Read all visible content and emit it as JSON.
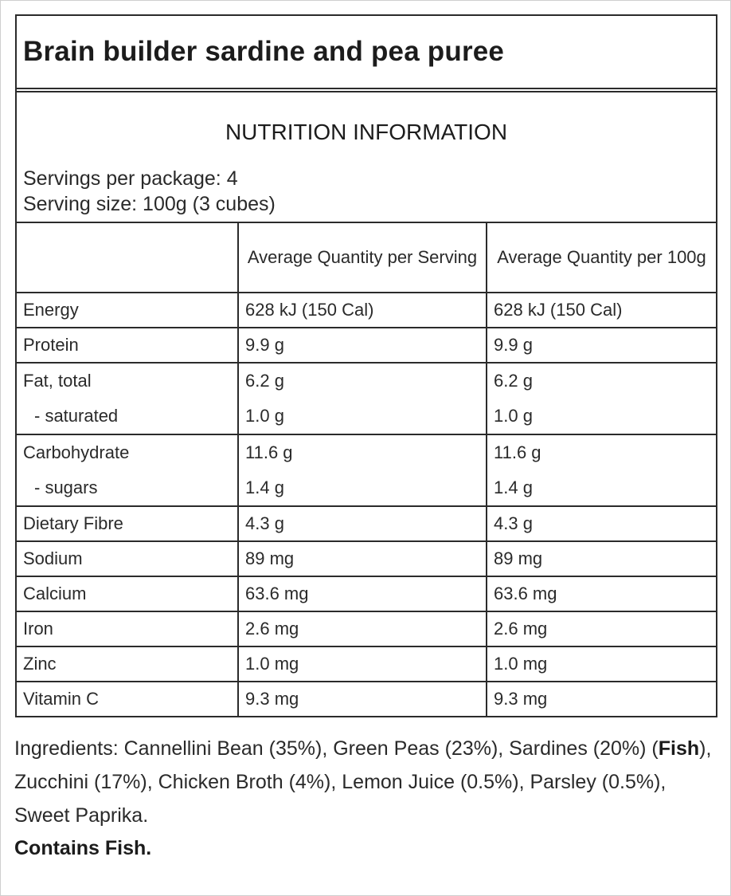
{
  "title": "Brain builder sardine and pea puree",
  "heading": "NUTRITION INFORMATION",
  "servings_per_package": "Servings per package: 4",
  "serving_size": "Serving size: 100g (3 cubes)",
  "table": {
    "headers": [
      "",
      "Average Quantity per Serving",
      "Average Quantity per 100g"
    ],
    "rows": [
      {
        "label": "Energy",
        "per_serving": "628 kJ (150 Cal)",
        "per_100g": "628 kJ (150 Cal)"
      },
      {
        "label": "Protein",
        "per_serving": "9.9 g",
        "per_100g": "9.9 g"
      },
      {
        "label": "Fat, total",
        "per_serving": "6.2 g",
        "per_100g": "6.2 g",
        "sub_label": "- saturated",
        "sub_per_serving": "1.0 g",
        "sub_per_100g": "1.0 g"
      },
      {
        "label": "Carbohydrate",
        "per_serving": "11.6 g",
        "per_100g": "11.6 g",
        "sub_label": "- sugars",
        "sub_per_serving": "1.4 g",
        "sub_per_100g": "1.4 g"
      },
      {
        "label": "Dietary Fibre",
        "per_serving": "4.3 g",
        "per_100g": "4.3 g"
      },
      {
        "label": "Sodium",
        "per_serving": "89 mg",
        "per_100g": "89 mg"
      },
      {
        "label": "Calcium",
        "per_serving": "63.6 mg",
        "per_100g": "63.6 mg"
      },
      {
        "label": "Iron",
        "per_serving": "2.6 mg",
        "per_100g": "2.6 mg"
      },
      {
        "label": "Zinc",
        "per_serving": "1.0 mg",
        "per_100g": "1.0 mg"
      },
      {
        "label": "Vitamin C",
        "per_serving": "9.3 mg",
        "per_100g": "9.3 mg"
      }
    ]
  },
  "ingredients": {
    "part1": "Ingredients: Cannellini Bean (35%), Green Peas (23%), Sardines (20%) (",
    "bold": "Fish",
    "part2": "), Zucchini (17%), Chicken Broth (4%), Lemon Juice (0.5%), Parsley (0.5%), Sweet Paprika."
  },
  "contains": "Contains Fish."
}
